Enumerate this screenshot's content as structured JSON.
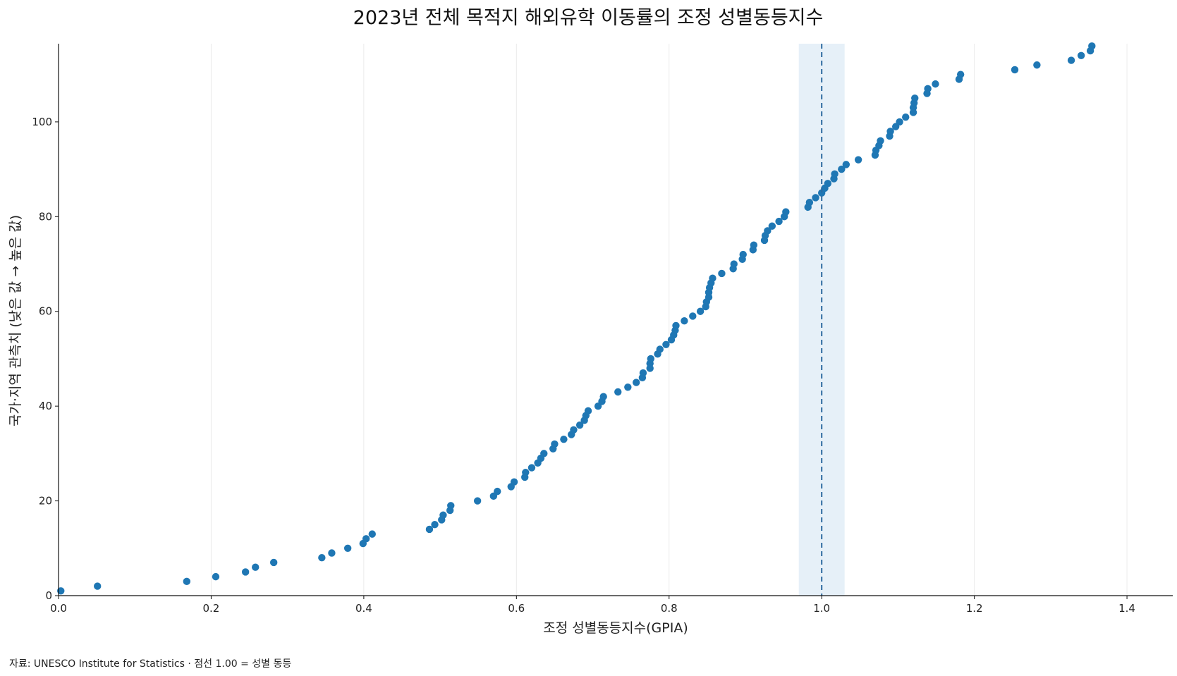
{
  "chart_data": {
    "type": "scatter",
    "title": "2023년 전체 목적지 해외유학 이동률의 조정 성별동등지수",
    "xlabel": "조정 성별동등지수(GPIA)",
    "ylabel": "국가·지역 관측치 (낮은 값 → 높은 값)",
    "xlim": [
      0,
      1.46
    ],
    "ylim": [
      0,
      116.5
    ],
    "x_ticks": [
      "0.0",
      "0.2",
      "0.4",
      "0.6",
      "0.8",
      "1.0",
      "1.2",
      "1.4"
    ],
    "y_ticks": [
      "0",
      "20",
      "40",
      "60",
      "80",
      "100"
    ],
    "grid": "vertical",
    "reference_line": {
      "x": 1.0,
      "style": "dashed",
      "band": [
        0.97,
        1.03
      ]
    },
    "point_color": "#1f77b4",
    "line_color": "#2c6aa0",
    "band_color": "#e6f0f8",
    "points": [
      [
        0.003,
        1
      ],
      [
        0.051,
        2
      ],
      [
        0.168,
        3
      ],
      [
        0.206,
        4
      ],
      [
        0.245,
        5
      ],
      [
        0.258,
        6
      ],
      [
        0.282,
        7
      ],
      [
        0.345,
        8
      ],
      [
        0.358,
        9
      ],
      [
        0.379,
        10
      ],
      [
        0.399,
        11
      ],
      [
        0.403,
        12
      ],
      [
        0.411,
        13
      ],
      [
        0.486,
        14
      ],
      [
        0.493,
        15
      ],
      [
        0.502,
        16
      ],
      [
        0.504,
        17
      ],
      [
        0.513,
        18
      ],
      [
        0.514,
        19
      ],
      [
        0.549,
        20
      ],
      [
        0.57,
        21
      ],
      [
        0.575,
        22
      ],
      [
        0.593,
        23
      ],
      [
        0.597,
        24
      ],
      [
        0.611,
        25
      ],
      [
        0.612,
        26
      ],
      [
        0.62,
        27
      ],
      [
        0.628,
        28
      ],
      [
        0.632,
        29
      ],
      [
        0.636,
        30
      ],
      [
        0.648,
        31
      ],
      [
        0.65,
        32
      ],
      [
        0.662,
        33
      ],
      [
        0.672,
        34
      ],
      [
        0.675,
        35
      ],
      [
        0.683,
        36
      ],
      [
        0.689,
        37
      ],
      [
        0.691,
        38
      ],
      [
        0.694,
        39
      ],
      [
        0.707,
        40
      ],
      [
        0.712,
        41
      ],
      [
        0.714,
        42
      ],
      [
        0.733,
        43
      ],
      [
        0.746,
        44
      ],
      [
        0.757,
        45
      ],
      [
        0.765,
        46
      ],
      [
        0.766,
        47
      ],
      [
        0.775,
        48
      ],
      [
        0.775,
        49
      ],
      [
        0.776,
        50
      ],
      [
        0.785,
        51
      ],
      [
        0.788,
        52
      ],
      [
        0.796,
        53
      ],
      [
        0.803,
        54
      ],
      [
        0.806,
        55
      ],
      [
        0.808,
        56
      ],
      [
        0.809,
        57
      ],
      [
        0.82,
        58
      ],
      [
        0.831,
        59
      ],
      [
        0.841,
        60
      ],
      [
        0.848,
        61
      ],
      [
        0.849,
        62
      ],
      [
        0.852,
        63
      ],
      [
        0.852,
        64
      ],
      [
        0.853,
        65
      ],
      [
        0.855,
        66
      ],
      [
        0.857,
        67
      ],
      [
        0.869,
        68
      ],
      [
        0.884,
        69
      ],
      [
        0.885,
        70
      ],
      [
        0.896,
        71
      ],
      [
        0.897,
        72
      ],
      [
        0.91,
        73
      ],
      [
        0.911,
        74
      ],
      [
        0.925,
        75
      ],
      [
        0.926,
        76
      ],
      [
        0.929,
        77
      ],
      [
        0.935,
        78
      ],
      [
        0.944,
        79
      ],
      [
        0.951,
        80
      ],
      [
        0.953,
        81
      ],
      [
        0.982,
        82
      ],
      [
        0.984,
        83
      ],
      [
        0.992,
        84
      ],
      [
        1.0,
        85
      ],
      [
        1.004,
        86
      ],
      [
        1.008,
        87
      ],
      [
        1.016,
        88
      ],
      [
        1.017,
        89
      ],
      [
        1.026,
        90
      ],
      [
        1.032,
        91
      ],
      [
        1.048,
        92
      ],
      [
        1.07,
        93
      ],
      [
        1.071,
        94
      ],
      [
        1.075,
        95
      ],
      [
        1.077,
        96
      ],
      [
        1.089,
        97
      ],
      [
        1.09,
        98
      ],
      [
        1.097,
        99
      ],
      [
        1.102,
        100
      ],
      [
        1.11,
        101
      ],
      [
        1.12,
        102
      ],
      [
        1.12,
        103
      ],
      [
        1.121,
        104
      ],
      [
        1.122,
        105
      ],
      [
        1.138,
        106
      ],
      [
        1.139,
        107
      ],
      [
        1.149,
        108
      ],
      [
        1.18,
        109
      ],
      [
        1.182,
        110
      ],
      [
        1.253,
        111
      ],
      [
        1.282,
        112
      ],
      [
        1.327,
        113
      ],
      [
        1.34,
        114
      ],
      [
        1.352,
        115
      ],
      [
        1.354,
        116
      ]
    ]
  },
  "footer": {
    "source": "자료: UNESCO Institute for Statistics · 점선 1.00 = 성별 동등"
  }
}
